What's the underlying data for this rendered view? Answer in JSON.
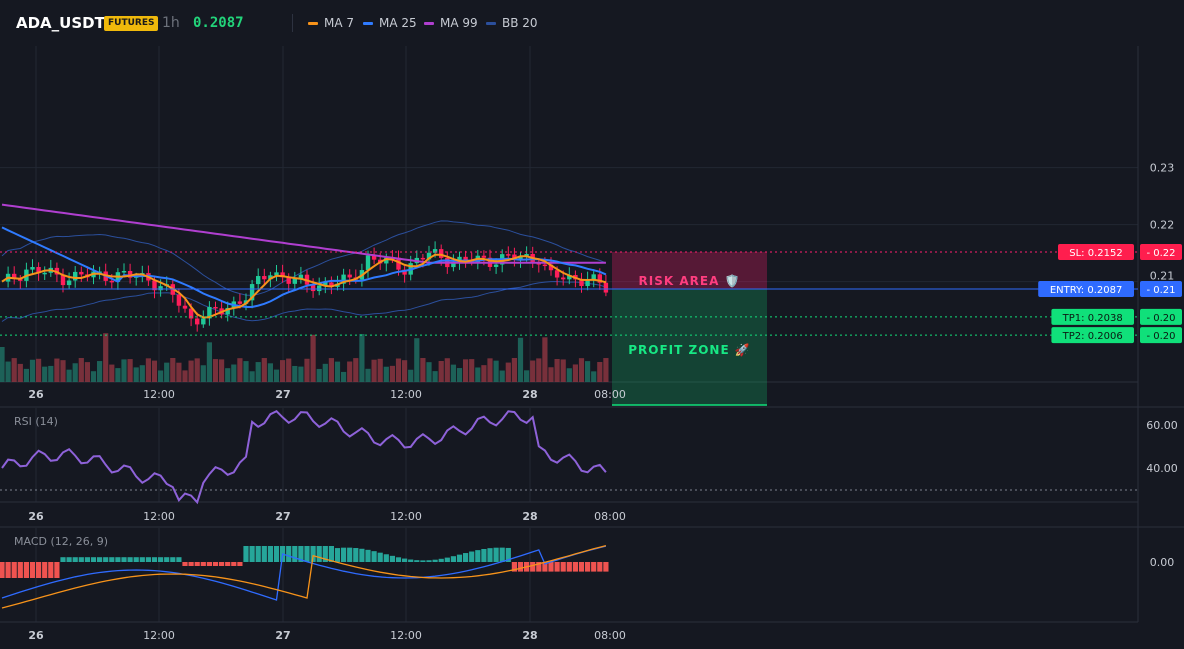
{
  "header": {
    "symbol": "ADA_USDT",
    "badge": "FUTURES",
    "timeframe": "1h",
    "last_price": "0.2087",
    "legend": [
      {
        "name": "MA 7",
        "color": "#f7931a"
      },
      {
        "name": "MA 25",
        "color": "#2f7bff"
      },
      {
        "name": "MA 99",
        "color": "#b03fd0"
      },
      {
        "name": "BB 20",
        "color": "#2b4f9c"
      }
    ]
  },
  "price_axis": {
    "ticks": [
      "0.23",
      "0.22",
      "0.21"
    ]
  },
  "levels": {
    "sl": {
      "label": "SL: 0.2152",
      "axis": "0.22",
      "value": 0.2152,
      "color": "#ff1e6e"
    },
    "entry": {
      "label": "ENTRY: 0.2087",
      "axis": "0.21",
      "value": 0.2087,
      "color": "#2f6bff"
    },
    "tp1": {
      "label": "TP1: 0.2038",
      "axis": "0.20",
      "value": 0.2038,
      "color": "#10e07a"
    },
    "tp2": {
      "label": "TP2: 0.2006",
      "axis": "0.20",
      "value": 0.2006,
      "color": "#10e07a"
    }
  },
  "zones": {
    "risk": "RISK AREA 🛡️",
    "profit": "PROFIT ZONE 🚀"
  },
  "time_axis": [
    "26",
    "12:00",
    "27",
    "12:00",
    "28",
    "08:00"
  ],
  "rsi": {
    "title": "RSI (14)",
    "ticks": [
      "60.00",
      "40.00"
    ]
  },
  "macd": {
    "title": "MACD (12, 26, 9)",
    "ticks": [
      "0.00"
    ]
  },
  "colors": {
    "up": "#26a69a",
    "down": "#ef5350",
    "up_candle": "#20c997",
    "down_candle": "#ff1e5a",
    "rsi_line": "#8e62d9",
    "macd_line": "#2f6bff",
    "signal_line": "#f7931a",
    "grid": "#222733"
  }
}
